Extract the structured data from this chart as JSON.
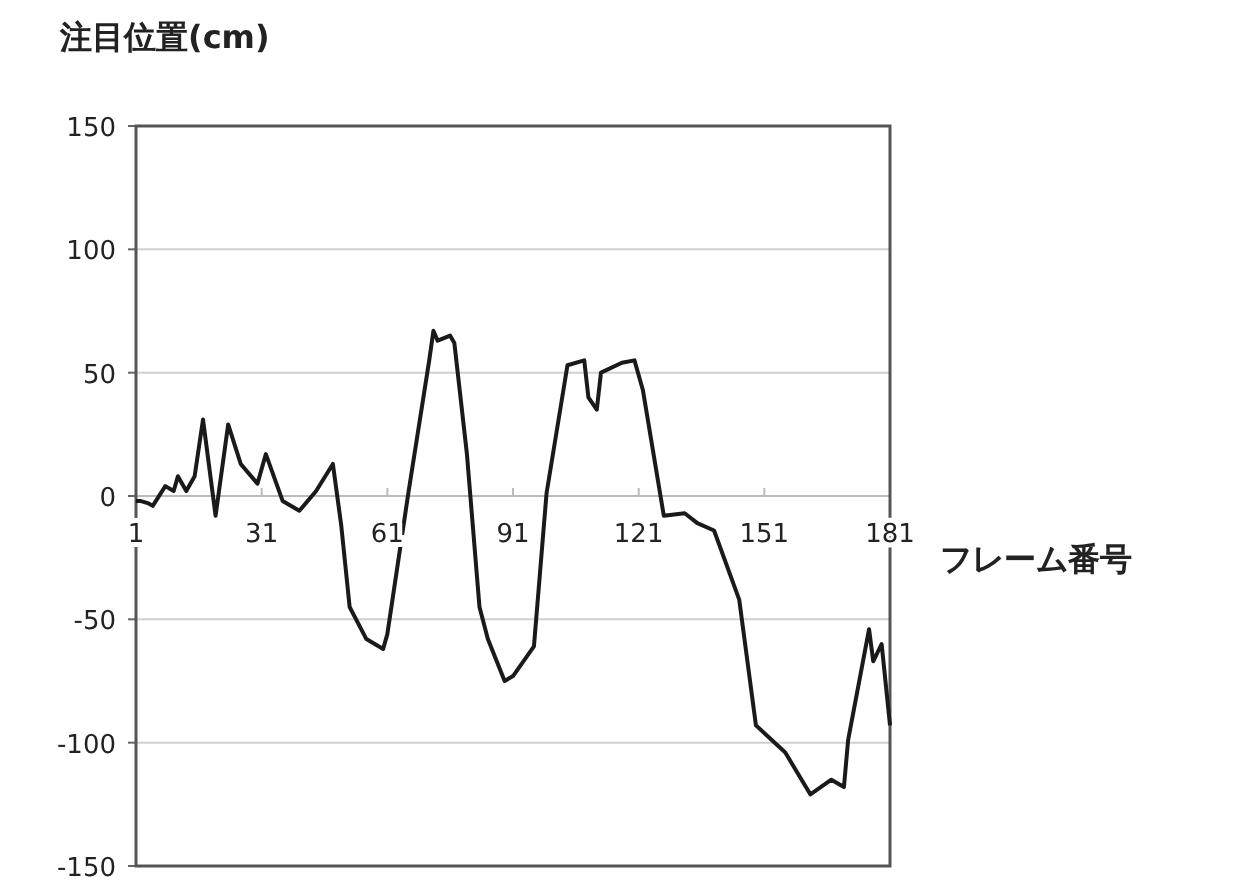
{
  "chart_data": {
    "type": "line",
    "ylabel": "注目位置(cm)",
    "xlabel": "フレーム番号",
    "x": [
      1,
      2,
      4,
      5,
      8,
      10,
      11,
      13,
      15,
      17,
      20,
      23,
      26,
      30,
      32,
      36,
      40,
      44,
      48,
      50,
      52,
      56,
      60,
      61,
      66,
      71,
      72,
      73,
      76,
      77,
      80,
      83,
      85,
      89,
      91,
      96,
      99,
      104,
      108,
      109,
      111,
      112,
      117,
      120,
      122,
      127,
      132,
      135,
      139,
      145,
      149,
      156,
      162,
      167,
      170,
      171,
      176,
      177,
      179,
      181
    ],
    "series": [
      {
        "color": "#1a1a1a",
        "values": [
          -2,
          -2,
          -3,
          -4,
          4,
          2,
          8,
          2,
          8,
          31,
          -8,
          29,
          13,
          5,
          17,
          -2,
          -6,
          2,
          13,
          -12,
          -45,
          -58,
          -62,
          -56,
          1,
          55,
          67,
          63,
          65,
          62,
          17,
          -45,
          -58,
          -75,
          -73,
          -61,
          1,
          53,
          55,
          40,
          35,
          50,
          54,
          55,
          43,
          -8,
          -7,
          -11,
          -14,
          -42,
          -93,
          -104,
          -121,
          -115,
          -118,
          -99,
          -54,
          -67,
          -60,
          -93
        ]
      }
    ],
    "xlim": [
      1,
      181
    ],
    "xticks": [
      1,
      31,
      61,
      91,
      121,
      151,
      181
    ],
    "ylim": [
      -150,
      150
    ],
    "yticks": [
      -150,
      -100,
      -50,
      0,
      50,
      100,
      150
    ],
    "grid": "y",
    "line_style": "solid",
    "marker": "none"
  }
}
